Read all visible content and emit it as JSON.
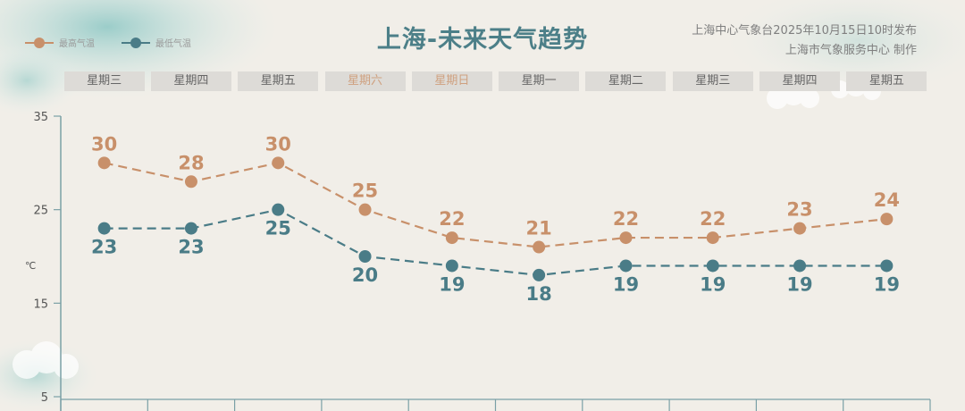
{
  "header": {
    "title": "上海-未来天气趋势",
    "issuer_line1": "上海中心气象台2025年10月15日10时发布",
    "issuer_line2": "上海市气象服务中心 制作"
  },
  "legend": {
    "high_label": "最高气温",
    "low_label": "最低气温"
  },
  "unit_label": "℃",
  "colors": {
    "high": "#c8906a",
    "low": "#4a7c87",
    "axis": "#7aa0a6",
    "tab_bg": "#dddbd7",
    "weekday_text": "#666666",
    "weekend_text": "#cfa07f"
  },
  "chart_data": {
    "type": "line",
    "categories": [
      "星期三",
      "星期四",
      "星期五",
      "星期六",
      "星期日",
      "星期一",
      "星期二",
      "星期三",
      "星期四",
      "星期五"
    ],
    "weekend_flags": [
      false,
      false,
      false,
      true,
      true,
      false,
      false,
      false,
      false,
      false
    ],
    "series": [
      {
        "name": "最高气温",
        "values": [
          30,
          28,
          30,
          25,
          22,
          21,
          22,
          22,
          23,
          24
        ],
        "color": "#c8906a"
      },
      {
        "name": "最低气温",
        "values": [
          23,
          23,
          25,
          20,
          19,
          18,
          19,
          19,
          19,
          19
        ],
        "color": "#4a7c87"
      }
    ],
    "title": "上海-未来天气趋势",
    "ylabel": "℃",
    "yticks": [
      "35",
      "25",
      "15",
      "5"
    ],
    "ylim": [
      5,
      35
    ],
    "grid": false,
    "legend_position": "top-left"
  }
}
